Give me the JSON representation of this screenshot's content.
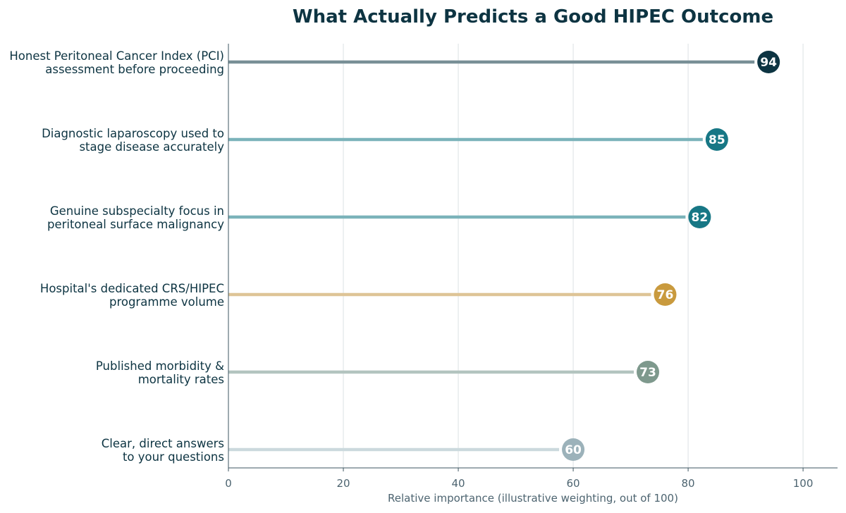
{
  "chart_data": {
    "type": "lollipop",
    "title": "What Actually Predicts a Good HIPEC Outcome",
    "xlabel": "Relative importance (illustrative weighting, out of 100)",
    "ylabel": "",
    "xlim": [
      0,
      106
    ],
    "xticks": [
      0,
      20,
      40,
      60,
      80,
      100
    ],
    "grid": "vertical",
    "show_value_labels": true,
    "categories": [
      [
        "Honest Peritoneal Cancer Index (PCI)",
        "assessment before proceeding"
      ],
      [
        "Diagnostic laparoscopy used to",
        "stage disease accurately"
      ],
      [
        "Genuine subspecialty focus in",
        "peritoneal surface malignancy"
      ],
      [
        "Hospital's dedicated CRS/HIPEC",
        "programme volume"
      ],
      [
        "Published morbidity &",
        "mortality rates"
      ],
      [
        "Clear, direct answers",
        "to your questions"
      ]
    ],
    "values": [
      94,
      85,
      82,
      76,
      73,
      60
    ],
    "marker_colors": [
      "#0d3442",
      "#177785",
      "#177785",
      "#c99a3e",
      "#7e998d",
      "#9cb2ba"
    ],
    "stem_colors": [
      "#788f96",
      "#7bb3ba",
      "#7bb3ba",
      "#dec496",
      "#b3c4bf",
      "#cbd9dd"
    ]
  }
}
